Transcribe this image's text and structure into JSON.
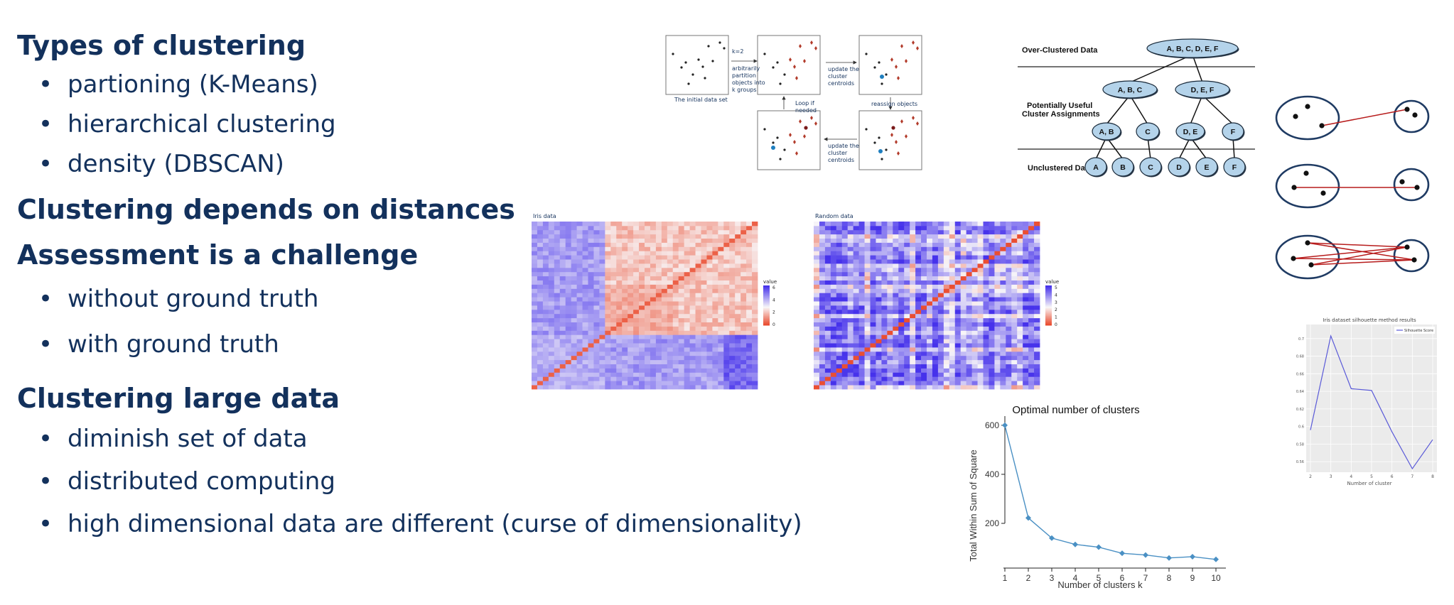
{
  "outline": [
    {
      "heading": "Types of clustering",
      "bullets": [
        "partioning (K-Means)",
        "hierarchical clustering",
        "density (DBSCAN)"
      ]
    },
    {
      "heading": "Clustering depends on distances",
      "bullets": []
    },
    {
      "heading": "Assessment is a challenge",
      "bullets": [
        "without ground truth",
        "with ground truth"
      ]
    },
    {
      "heading": "Clustering large data",
      "bullets": [
        "diminish set of data",
        "distributed computing",
        "high dimensional data are different (curse of dimensionality)"
      ]
    }
  ],
  "kmeans": {
    "k_label": "k=2",
    "partition_text": [
      "arbitrarily",
      "partition",
      "objects into",
      "k groups"
    ],
    "initial_caption": "The initial data set",
    "update1_text": [
      "update the",
      "cluster",
      "centroids"
    ],
    "update2_text": [
      "update the",
      "cluster",
      "centroids"
    ],
    "reassign_text": "reassign objects",
    "loop_text": [
      "Loop if",
      "needed"
    ]
  },
  "dendrogram": {
    "row_labels": [
      "Over-Clustered Data",
      "Potentially Useful",
      "Cluster Assignments",
      "Unclustered Data"
    ],
    "root": "A, B, C, D, E, F",
    "level2": [
      "A, B, C",
      "D, E, F"
    ],
    "level3": [
      "A, B",
      "C",
      "D, E",
      "F"
    ],
    "leaves": [
      "A",
      "B",
      "C",
      "D",
      "E",
      "F"
    ]
  },
  "heatmaps": [
    {
      "title": "Iris data",
      "legend_title": "value",
      "legend_ticks": [
        "6",
        "4",
        "2",
        "0"
      ]
    },
    {
      "title": "Random data",
      "legend_title": "value",
      "legend_ticks": [
        "5",
        "4",
        "3",
        "2",
        "1",
        "0"
      ]
    }
  ],
  "colors": {
    "heading": "#13315c",
    "curve": "#4a90c4",
    "silhouette": "#5a5ad8",
    "linkage": "#b71c1c",
    "node_fill": "#b4d3ea"
  },
  "chart_data": [
    {
      "type": "line",
      "title": "Optimal number of clusters",
      "xlabel": "Number of clusters k",
      "ylabel": "Total Within Sum of Square",
      "x": [
        1,
        2,
        3,
        4,
        5,
        6,
        7,
        8,
        9,
        10
      ],
      "values": [
        600,
        222,
        140,
        114,
        103,
        78,
        71,
        59,
        64,
        53
      ],
      "xlim": [
        1,
        10
      ],
      "ylim": [
        35,
        620
      ],
      "yticks": [
        200,
        400,
        600
      ],
      "grid": false
    },
    {
      "type": "line",
      "title": "Iris dataset silhouette method results",
      "xlabel": "Number of cluster",
      "ylabel": "",
      "series": [
        {
          "name": "Silhouette Score",
          "x": [
            2,
            3,
            4,
            5,
            6,
            7,
            8
          ],
          "values": [
            0.596,
            0.703,
            0.643,
            0.641,
            0.594,
            0.552,
            0.585
          ]
        }
      ],
      "xlim": [
        2,
        8
      ],
      "ylim": [
        0.548,
        0.716
      ],
      "xticks": [
        2,
        3,
        4,
        5,
        6,
        7,
        8
      ],
      "yticks": [
        0.56,
        0.58,
        0.6,
        0.62,
        0.64,
        0.66,
        0.68,
        0.7
      ],
      "grid": true,
      "legend": "top-right"
    }
  ]
}
